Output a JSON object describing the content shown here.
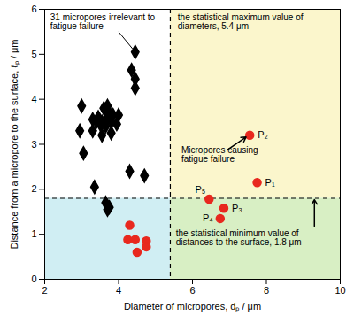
{
  "chart_data": {
    "type": "scatter",
    "x_label": "Diameter of micropores, dₚ / μm",
    "y_label": "Distance from a micropore to the surface, ℓₚ / μm",
    "xlim": [
      2,
      10
    ],
    "ylim": [
      0,
      6
    ],
    "xticks": [
      2,
      4,
      6,
      8,
      10
    ],
    "yticks": [
      0,
      1,
      2,
      3,
      4,
      5,
      6
    ],
    "grid": false,
    "series": [
      {
        "name": "31 micropores irrelevant to fatigue failure",
        "color": "#000000",
        "marker": "diamond",
        "x": [
          4.45,
          4.35,
          4.45,
          4.45,
          3.0,
          3.3,
          3.4,
          3.5,
          3.55,
          3.6,
          3.65,
          3.7,
          3.75,
          3.8,
          3.7,
          3.85,
          2.95,
          3.3,
          3.55,
          3.65,
          3.8,
          3.95,
          3.05,
          3.35,
          4.3,
          4.7,
          3.65,
          3.7,
          3.75,
          4.0,
          3.45
        ],
        "y": [
          5.05,
          4.65,
          4.45,
          4.25,
          3.85,
          3.55,
          3.5,
          3.45,
          3.5,
          3.8,
          3.75,
          3.85,
          3.7,
          3.5,
          3.6,
          3.65,
          3.3,
          3.3,
          3.2,
          3.4,
          3.25,
          3.45,
          2.8,
          2.05,
          2.4,
          2.3,
          1.7,
          1.55,
          1.6,
          3.65,
          3.6
        ]
      },
      {
        "name": "Micropores causing fatigue failure",
        "color": "#e8281e",
        "marker": "circle",
        "x": [
          7.75,
          7.55,
          6.85,
          6.75,
          6.45,
          4.3,
          4.25,
          4.45,
          4.5,
          4.75,
          4.75
        ],
        "y": [
          2.15,
          3.2,
          1.58,
          1.35,
          1.78,
          1.2,
          0.88,
          0.88,
          0.6,
          0.85,
          0.72
        ],
        "labels": [
          "P₁",
          "P₂",
          "P₃",
          "P₄",
          "P₅",
          null,
          null,
          null,
          null,
          null,
          null
        ]
      }
    ],
    "reference_lines": [
      {
        "axis": "x",
        "value": 5.4,
        "label": "the statistical maximum value of diameters, 5.4 μm",
        "line_style": "dashed"
      },
      {
        "axis": "y",
        "value": 1.8,
        "label": "the statistical minimum value of distances to the surface, 1.8 μm",
        "line_style": "dashed"
      }
    ],
    "regions": {
      "colors": [
        "#fbf6cc",
        "#d8efc4",
        "#d0eef3"
      ]
    }
  }
}
